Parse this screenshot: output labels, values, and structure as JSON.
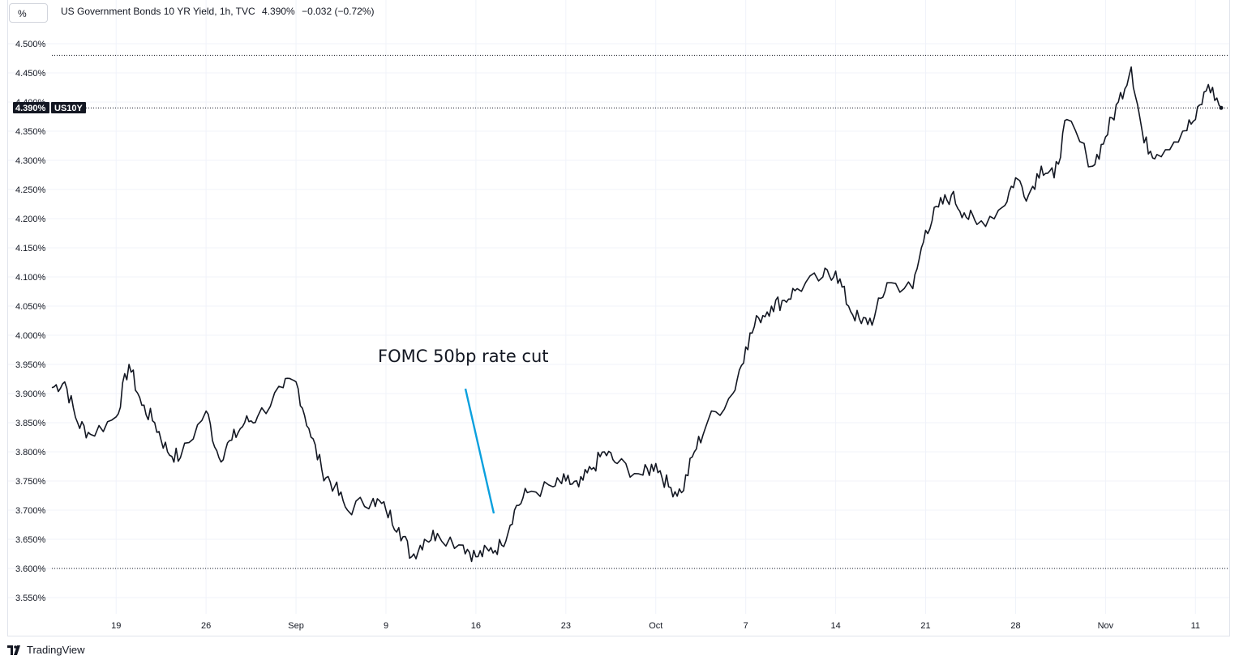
{
  "unit_label": "%",
  "header": {
    "title": "US Government Bonds 10 YR Yield, 1h, TVC",
    "last": "4.390%",
    "change": "−0.032 (−0.72%)"
  },
  "price_tag": {
    "value": "4.390%",
    "symbol": "US10Y"
  },
  "annotation": "FOMC 50bp rate cut",
  "footer": {
    "brand": "TradingView"
  },
  "colors": {
    "line": "#131722",
    "arrow": "#0aa0de",
    "grid": "#f0f3fa",
    "tag_bg": "#131722"
  },
  "chart_data": {
    "type": "line",
    "title": "US Government Bonds 10 YR Yield, 1h, TVC",
    "ylim": [
      3.525,
      4.525
    ],
    "y_ticks": [
      3.55,
      3.6,
      3.65,
      3.7,
      3.75,
      3.8,
      3.85,
      3.9,
      3.95,
      4.0,
      4.05,
      4.1,
      4.15,
      4.2,
      4.25,
      4.3,
      4.35,
      4.4,
      4.45,
      4.5
    ],
    "y_tick_labels": [
      "3.550%",
      "3.600%",
      "3.650%",
      "3.700%",
      "3.750%",
      "3.800%",
      "3.850%",
      "3.900%",
      "3.950%",
      "4.000%",
      "4.050%",
      "4.100%",
      "4.150%",
      "4.200%",
      "4.250%",
      "4.300%",
      "4.350%",
      "4.400%",
      "4.450%",
      "4.500%"
    ],
    "xlim": [
      "2024-08-14",
      "2024-11-13"
    ],
    "x_ticks": [
      {
        "date": "2024-08-19",
        "label": "19"
      },
      {
        "date": "2024-08-26",
        "label": "26"
      },
      {
        "date": "2024-09-02",
        "label": "Sep"
      },
      {
        "date": "2024-09-09",
        "label": "9"
      },
      {
        "date": "2024-09-16",
        "label": "16"
      },
      {
        "date": "2024-09-23",
        "label": "23"
      },
      {
        "date": "2024-09-30",
        "label": "Oct"
      },
      {
        "date": "2024-10-07",
        "label": "7"
      },
      {
        "date": "2024-10-14",
        "label": "14"
      },
      {
        "date": "2024-10-21",
        "label": "21"
      },
      {
        "date": "2024-10-28",
        "label": "28"
      },
      {
        "date": "2024-11-04",
        "label": "Nov"
      },
      {
        "date": "2024-11-11",
        "label": "11"
      }
    ],
    "reference_lines": [
      4.48,
      4.39,
      3.6
    ],
    "series": [
      {
        "x": [
          "2024-08-14",
          "2024-08-15",
          "2024-08-16",
          "2024-08-17",
          "2024-08-19",
          "2024-08-20",
          "2024-08-21",
          "2024-08-22",
          "2024-08-23",
          "2024-08-24",
          "2024-08-26",
          "2024-08-27",
          "2024-08-28",
          "2024-08-29",
          "2024-08-30",
          "2024-09-01",
          "2024-09-02",
          "2024-09-03",
          "2024-09-04",
          "2024-09-05",
          "2024-09-06",
          "2024-09-08",
          "2024-09-09",
          "2024-09-10",
          "2024-09-11",
          "2024-09-12",
          "2024-09-13",
          "2024-09-15",
          "2024-09-16",
          "2024-09-17",
          "2024-09-18",
          "2024-09-19",
          "2024-09-20",
          "2024-09-22",
          "2024-09-23",
          "2024-09-24",
          "2024-09-25",
          "2024-09-26",
          "2024-09-27",
          "2024-09-29",
          "2024-09-30",
          "2024-10-01",
          "2024-10-02",
          "2024-10-03",
          "2024-10-04",
          "2024-10-06",
          "2024-10-07",
          "2024-10-08",
          "2024-10-09",
          "2024-10-10",
          "2024-10-11",
          "2024-10-13",
          "2024-10-14",
          "2024-10-15",
          "2024-10-16",
          "2024-10-17",
          "2024-10-18",
          "2024-10-20",
          "2024-10-21",
          "2024-10-22",
          "2024-10-23",
          "2024-10-24",
          "2024-10-25",
          "2024-10-27",
          "2024-10-28",
          "2024-10-29",
          "2024-10-30",
          "2024-10-31",
          "2024-11-01",
          "2024-11-03",
          "2024-11-04",
          "2024-11-05",
          "2024-11-06",
          "2024-11-07",
          "2024-11-08",
          "2024-11-10",
          "2024-11-11",
          "2024-11-12",
          "2024-11-13"
        ],
        "values": [
          3.91,
          3.92,
          3.85,
          3.83,
          3.86,
          3.95,
          3.88,
          3.85,
          3.8,
          3.79,
          3.87,
          3.79,
          3.82,
          3.85,
          3.86,
          3.91,
          3.92,
          3.84,
          3.77,
          3.74,
          3.7,
          3.72,
          3.7,
          3.67,
          3.62,
          3.65,
          3.66,
          3.64,
          3.62,
          3.63,
          3.64,
          3.7,
          3.73,
          3.74,
          3.75,
          3.74,
          3.77,
          3.8,
          3.78,
          3.76,
          3.78,
          3.74,
          3.73,
          3.8,
          3.85,
          3.9,
          3.98,
          4.03,
          4.05,
          4.06,
          4.08,
          4.1,
          4.11,
          4.05,
          4.02,
          4.03,
          4.09,
          4.08,
          4.18,
          4.22,
          4.24,
          4.21,
          4.19,
          4.22,
          4.27,
          4.24,
          4.29,
          4.27,
          4.37,
          4.29,
          4.34,
          4.4,
          4.46,
          4.33,
          4.31,
          4.35,
          4.37,
          4.43,
          4.39
        ]
      }
    ]
  }
}
